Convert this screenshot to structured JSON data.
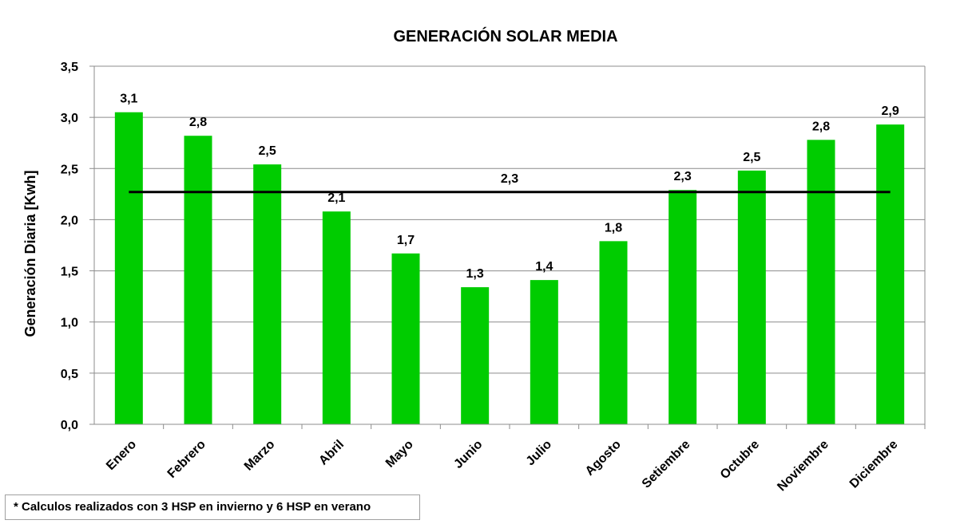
{
  "chart_data": {
    "type": "bar",
    "title": "GENERACIÓN SOLAR MEDIA",
    "xlabel": "",
    "ylabel": "Generación Diaria [Kwh]",
    "categories": [
      "Enero",
      "Febrero",
      "Marzo",
      "Abril",
      "Mayo",
      "Junio",
      "Julio",
      "Agosto",
      "Setiembre",
      "Octubre",
      "Noviembre",
      "Diciembre"
    ],
    "values": [
      3.05,
      2.82,
      2.54,
      2.08,
      1.67,
      1.34,
      1.41,
      1.79,
      2.29,
      2.48,
      2.78,
      2.93
    ],
    "data_labels": [
      "3,1",
      "2,8",
      "2,5",
      "2,1",
      "1,7",
      "1,3",
      "1,4",
      "1,8",
      "2,3",
      "2,5",
      "2,8",
      "2,9"
    ],
    "average": {
      "value": 2.27,
      "label": "2,3"
    },
    "ylim": [
      0,
      3.5
    ],
    "yticks": [
      "0,0",
      "0,5",
      "1,0",
      "1,5",
      "2,0",
      "2,5",
      "3,0",
      "3,5"
    ],
    "grid": true,
    "bar_color": "#00cc00",
    "average_line_color": "#000000"
  },
  "footnote": "* Calculos realizados con 3 HSP en invierno y 6 HSP en verano"
}
